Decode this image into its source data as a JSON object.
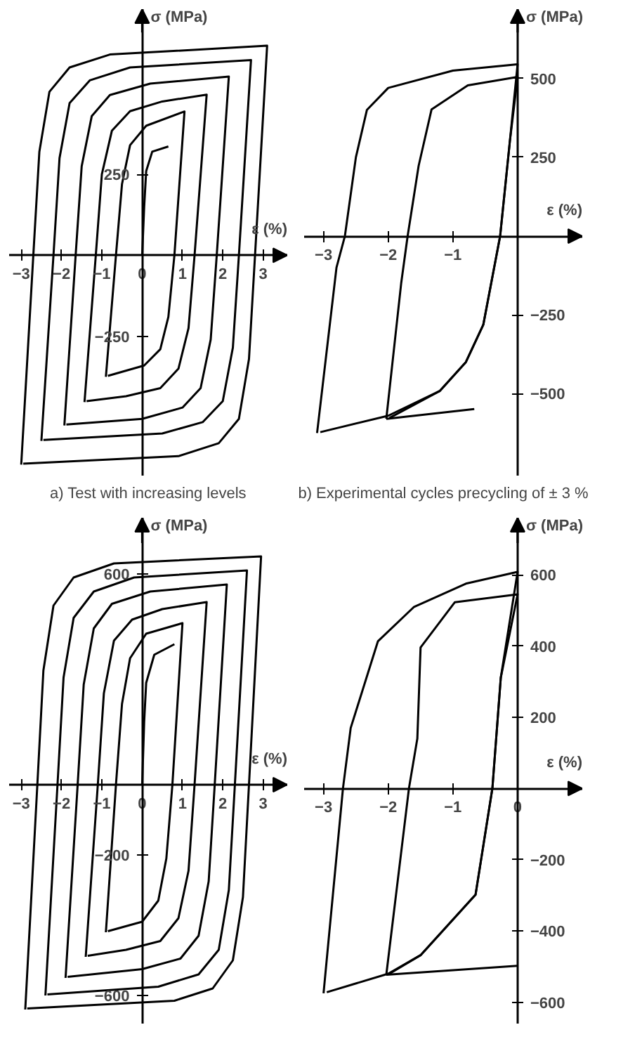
{
  "chart_data": [
    {
      "type": "line",
      "title": "a) Test with increasing levels",
      "xlabel": "ε (%)",
      "ylabel": "σ (MPa)",
      "xlim": [
        -3.3,
        3.6
      ],
      "ylim": [
        -680,
        760
      ],
      "xticks": [
        -3,
        -2,
        -1,
        0,
        1,
        2,
        3
      ],
      "yticks": [
        250,
        -250
      ],
      "series": [
        {
          "color": "#000000",
          "x": [
            0,
            0.05,
            0.1,
            0.25,
            0.65
          ],
          "values": [
            0,
            150,
            260,
            320,
            336
          ]
        },
        {
          "color": "#000000",
          "x": [
            -0.9,
            -0.65,
            -0.5,
            -0.3,
            0.1,
            1.05,
            0.8,
            0.65,
            0.45,
            0.05,
            -0.85
          ],
          "values": [
            -375,
            0,
            220,
            340,
            400,
            444,
            0,
            -190,
            -290,
            -340,
            -372
          ]
        },
        {
          "color": "#000000",
          "x": [
            -1.43,
            -1.15,
            -1.0,
            -0.75,
            -0.3,
            0.5,
            1.6,
            1.3,
            1.15,
            0.9,
            0.45,
            -0.4,
            -1.38
          ],
          "values": [
            -453,
            0,
            250,
            385,
            445,
            475,
            496,
            0,
            -225,
            -350,
            -410,
            -435,
            -450
          ]
        },
        {
          "color": "#000000",
          "x": [
            -1.93,
            -1.65,
            -1.5,
            -1.25,
            -0.8,
            0.2,
            2.15,
            1.85,
            1.7,
            1.45,
            1.0,
            0,
            -1.88
          ],
          "values": [
            -525,
            0,
            275,
            430,
            495,
            530,
            552,
            0,
            -260,
            -410,
            -470,
            -505,
            -522
          ]
        },
        {
          "color": "#000000",
          "x": [
            -2.5,
            -2.2,
            -2.05,
            -1.8,
            -1.3,
            -0.3,
            2.7,
            2.4,
            2.25,
            2.0,
            1.5,
            0.5,
            -2.45
          ],
          "values": [
            -573,
            0,
            300,
            470,
            540,
            580,
            603,
            0,
            -285,
            -450,
            -515,
            -550,
            -570
          ]
        },
        {
          "color": "#000000",
          "x": [
            -3.0,
            -2.7,
            -2.55,
            -2.3,
            -1.8,
            -0.8,
            3.1,
            2.8,
            2.65,
            2.4,
            1.9,
            0.9,
            -2.95
          ],
          "values": [
            -646,
            0,
            320,
            505,
            580,
            620,
            647,
            0,
            -320,
            -505,
            -580,
            -620,
            -643
          ]
        }
      ]
    },
    {
      "type": "line",
      "title": "b) Experimental cycles precycling of ± 3 %",
      "xlabel": "ε (%)",
      "ylabel": "σ (MPa)",
      "xlim": [
        -3.3,
        1.0
      ],
      "ylim": [
        -760,
        720
      ],
      "xticks": [
        -3,
        -2,
        -1
      ],
      "yticks": [
        500,
        250,
        -250,
        -500
      ],
      "series": [
        {
          "color": "#000000",
          "x": [
            -3.1,
            -2.8,
            -2.67,
            -2.5,
            -2.33,
            -2.0,
            -1.0,
            0,
            -0.12,
            -0.27,
            -0.53,
            -0.8,
            -1.2,
            -2.0,
            -3.05
          ],
          "values": [
            -625,
            -100,
            0,
            250,
            400,
            470,
            525,
            545,
            300,
            0,
            -281,
            -400,
            -491,
            -570,
            -622
          ]
        },
        {
          "color": "#000000",
          "x": [
            -2.03,
            -1.8,
            -1.7,
            -1.53,
            -1.33,
            -0.77,
            0,
            -0.12,
            -0.27,
            -0.53,
            -0.8,
            -1.2,
            -1.98
          ],
          "values": [
            -580,
            -150,
            0,
            223,
            402,
            478,
            505,
            300,
            0,
            -281,
            -400,
            -491,
            -577
          ]
        },
        {
          "color": "#000000",
          "x": [
            -2.03,
            -0.67
          ],
          "values": [
            -580,
            -549
          ]
        }
      ]
    },
    {
      "type": "line",
      "xlabel": "ε (%)",
      "ylabel": "σ (MPa)",
      "xlim": [
        -3.3,
        3.6
      ],
      "ylim": [
        -680,
        760
      ],
      "xticks": [
        -3,
        -2,
        -1,
        0,
        1,
        2,
        3
      ],
      "yticks": [
        600,
        -200,
        -600
      ],
      "series": [
        {
          "color": "#000000",
          "x": [
            0,
            0.05,
            0.1,
            0.3,
            0.8
          ],
          "values": [
            0,
            180,
            290,
            370,
            400
          ]
        },
        {
          "color": "#000000",
          "x": [
            -0.9,
            -0.65,
            -0.5,
            -0.3,
            0.1,
            1.0,
            0.75,
            0.6,
            0.4,
            0,
            -0.85
          ],
          "values": [
            -420,
            0,
            230,
            360,
            430,
            460,
            0,
            -210,
            -330,
            -390,
            -417
          ]
        },
        {
          "color": "#000000",
          "x": [
            -1.4,
            -1.1,
            -0.95,
            -0.7,
            -0.25,
            0.5,
            1.6,
            1.3,
            1.15,
            0.9,
            0.45,
            -0.4,
            -1.35
          ],
          "values": [
            -490,
            0,
            260,
            410,
            470,
            500,
            520,
            0,
            -245,
            -380,
            -445,
            -470,
            -487
          ]
        },
        {
          "color": "#000000",
          "x": [
            -1.9,
            -1.6,
            -1.45,
            -1.2,
            -0.75,
            0.2,
            2.1,
            1.8,
            1.65,
            1.4,
            0.95,
            0,
            -1.85
          ],
          "values": [
            -550,
            0,
            285,
            445,
            515,
            550,
            570,
            0,
            -275,
            -430,
            -495,
            -525,
            -547
          ]
        },
        {
          "color": "#000000",
          "x": [
            -2.4,
            -2.1,
            -1.95,
            -1.7,
            -1.2,
            -0.2,
            2.6,
            2.3,
            2.15,
            1.9,
            1.4,
            0.4,
            -2.35
          ],
          "values": [
            -600,
            0,
            305,
            475,
            550,
            590,
            610,
            0,
            -300,
            -470,
            -540,
            -575,
            -597
          ]
        },
        {
          "color": "#000000",
          "x": [
            -2.9,
            -2.6,
            -2.45,
            -2.2,
            -1.7,
            -0.7,
            2.95,
            2.65,
            2.5,
            2.25,
            1.75,
            0.8,
            -2.85
          ],
          "values": [
            -640,
            0,
            325,
            510,
            590,
            630,
            650,
            0,
            -320,
            -500,
            -580,
            -615,
            -637
          ]
        }
      ]
    },
    {
      "type": "line",
      "xlabel": "ε (%)",
      "ylabel": "σ (MPa)",
      "xlim": [
        -3.3,
        1.0
      ],
      "ylim": [
        -660,
        760
      ],
      "xticks": [
        -3,
        -2,
        -1,
        0
      ],
      "yticks": [
        600,
        400,
        200,
        -200,
        -400,
        -600
      ],
      "series": [
        {
          "color": "#000000",
          "x": [
            -3.0,
            -2.7,
            -2.58,
            -2.16,
            -1.6,
            -0.8,
            0,
            -0.26,
            -0.39,
            -0.65,
            -1.5,
            -2.0,
            -2.95
          ],
          "values": [
            -575,
            0,
            170,
            413,
            510,
            575,
            608,
            311,
            0,
            -298,
            -468,
            -520,
            -572
          ]
        },
        {
          "color": "#000000",
          "x": [
            -2.03,
            -1.68,
            -1.55,
            -1.5,
            -0.97,
            0,
            -0.26,
            -0.39,
            -0.65,
            -1.5,
            -1.98
          ],
          "values": [
            -523,
            0,
            140,
            396,
            523,
            545,
            311,
            0,
            -298,
            -468,
            -520
          ]
        },
        {
          "color": "#000000",
          "x": [
            -2.03,
            0
          ],
          "values": [
            -523,
            -498
          ]
        }
      ]
    }
  ]
}
